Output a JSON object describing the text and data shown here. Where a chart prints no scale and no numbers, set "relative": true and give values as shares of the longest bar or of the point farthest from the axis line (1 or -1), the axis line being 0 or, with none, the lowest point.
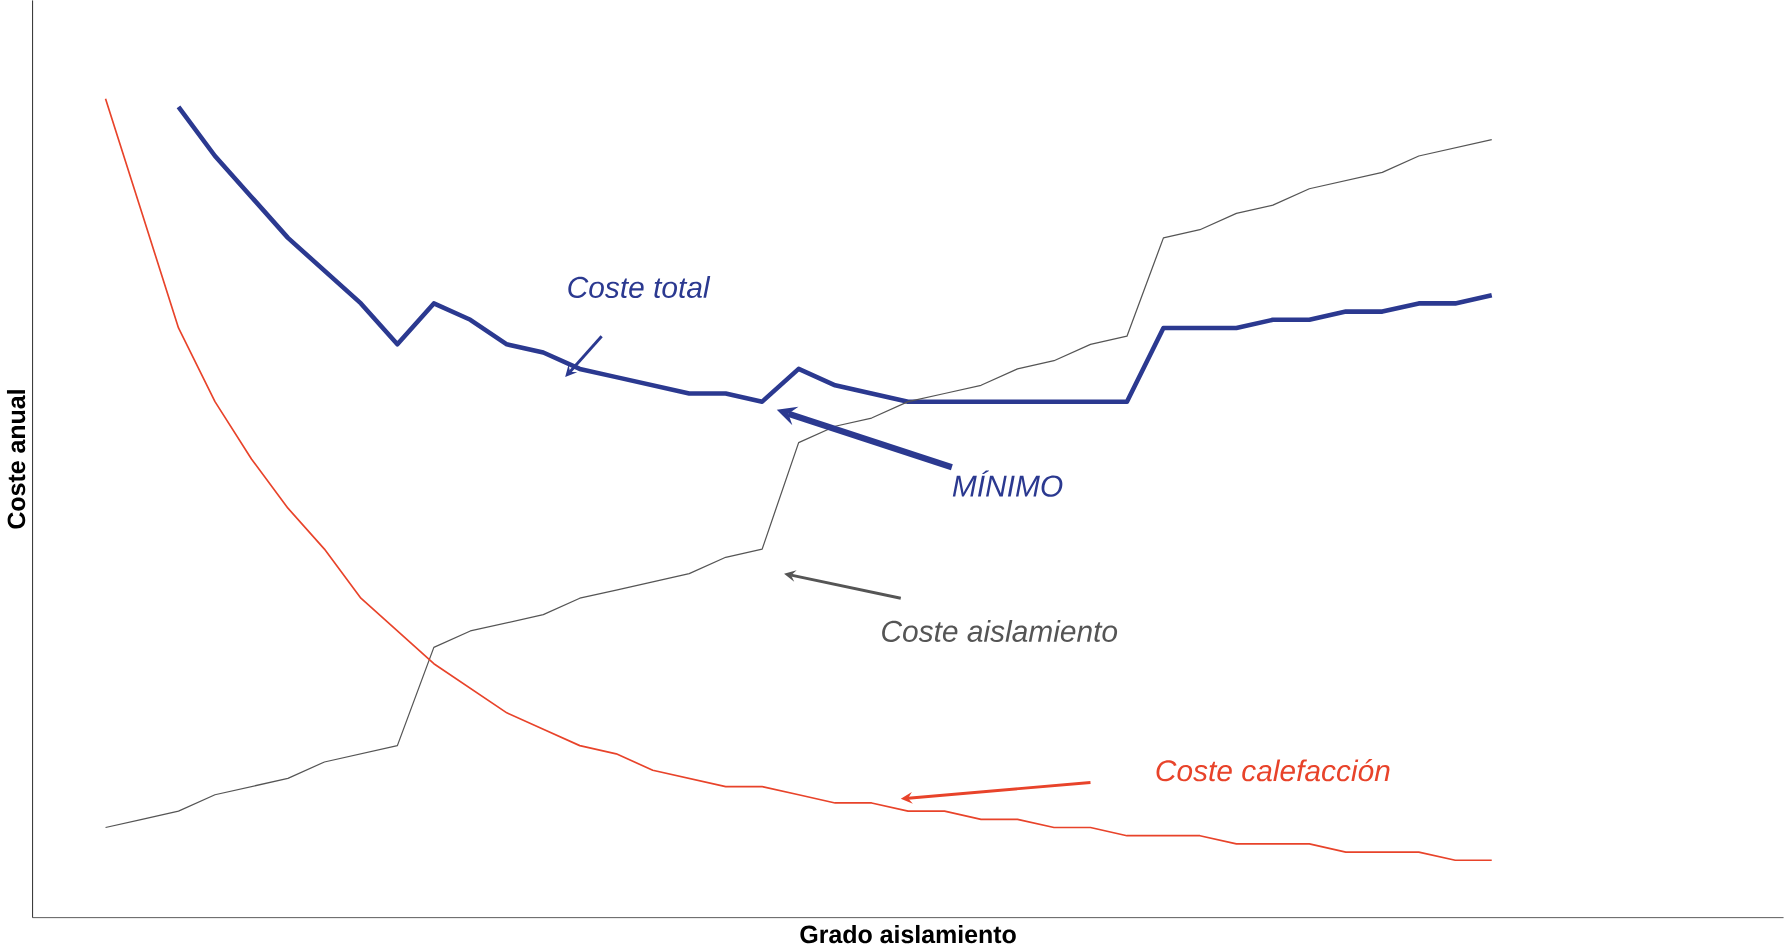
{
  "chart_data": {
    "type": "line",
    "relative": true,
    "xlabel": "Grado aislamiento",
    "ylabel": "Coste anual",
    "marker": "none",
    "line_style": "solid",
    "categories": [
      null,
      null,
      null,
      null,
      null,
      null,
      null,
      null,
      null,
      null,
      null,
      null,
      null,
      null,
      null,
      null,
      null,
      null,
      null,
      null,
      null,
      null,
      null,
      null,
      null,
      null,
      null,
      null,
      null,
      null,
      null,
      null,
      null,
      null,
      null,
      null,
      null,
      null,
      null
    ],
    "series": [
      {
        "name": "Coste total",
        "color": "#2b3990",
        "values": [
          null,
          null,
          0.99,
          0.93,
          0.88,
          0.83,
          0.79,
          0.75,
          0.7,
          0.75,
          0.73,
          0.7,
          0.69,
          0.67,
          0.66,
          0.65,
          0.64,
          0.64,
          0.63,
          0.67,
          0.65,
          0.64,
          0.63,
          0.63,
          0.63,
          0.63,
          0.63,
          0.63,
          0.63,
          0.72,
          0.72,
          0.72,
          0.73,
          0.73,
          0.74,
          0.74,
          0.75,
          0.75,
          0.76
        ]
      },
      {
        "name": "Coste aislamiento",
        "color": "#555555",
        "values": [
          0.11,
          0.12,
          0.13,
          0.15,
          0.16,
          0.17,
          0.19,
          0.2,
          0.21,
          0.33,
          0.35,
          0.36,
          0.37,
          0.39,
          0.4,
          0.41,
          0.42,
          0.44,
          0.45,
          0.58,
          0.6,
          0.61,
          0.63,
          0.64,
          0.65,
          0.67,
          0.68,
          0.7,
          0.71,
          0.83,
          0.84,
          0.86,
          0.87,
          0.89,
          0.9,
          0.91,
          0.93,
          0.94,
          0.95
        ]
      },
      {
        "name": "Coste calefacción",
        "color": "#e8432a",
        "values": [
          1.0,
          0.86,
          0.72,
          0.63,
          0.56,
          0.5,
          0.45,
          0.39,
          0.35,
          0.31,
          0.28,
          0.25,
          0.23,
          0.21,
          0.2,
          0.18,
          0.17,
          0.16,
          0.16,
          0.15,
          0.14,
          0.14,
          0.13,
          0.13,
          0.12,
          0.12,
          0.11,
          0.11,
          0.1,
          0.1,
          0.1,
          0.09,
          0.09,
          0.09,
          0.08,
          0.08,
          0.08,
          0.07,
          0.07
        ]
      }
    ],
    "annotations": [
      "MÍNIMO"
    ]
  }
}
